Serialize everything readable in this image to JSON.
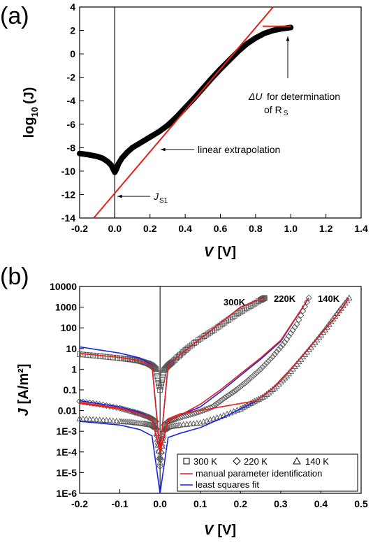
{
  "chart_data": [
    {
      "panel": "(a)",
      "type": "scatter",
      "xlabel_main": "V",
      "xlabel_unit": "[V]",
      "ylabel_main": "log",
      "ylabel_sub": "10",
      "ylabel_rest": "(J)",
      "xlim": [
        -0.2,
        1.4
      ],
      "ylim": [
        -14,
        4
      ],
      "xticks": [
        "-0.2",
        "0.0",
        "0.2",
        "0.4",
        "0.6",
        "0.8",
        "1.0",
        "1.2",
        "1.4"
      ],
      "yticks": [
        "-14",
        "-12",
        "-10",
        "-8",
        "-6",
        "-4",
        "-2",
        "0",
        "2",
        "4"
      ],
      "xtick_values": [
        -0.2,
        0,
        0.2,
        0.4,
        0.6,
        0.8,
        1.0,
        1.2,
        1.4
      ],
      "ytick_values": [
        -14,
        -12,
        -10,
        -8,
        -6,
        -4,
        -2,
        0,
        2,
        4
      ],
      "measured": {
        "x": [
          -0.2,
          -0.15,
          -0.1,
          -0.07,
          -0.04,
          -0.02,
          -0.01,
          0.0,
          0.01,
          0.02,
          0.04,
          0.07,
          0.1,
          0.15,
          0.2,
          0.25,
          0.3,
          0.35,
          0.4,
          0.45,
          0.5,
          0.55,
          0.6,
          0.65,
          0.7,
          0.75,
          0.8,
          0.85,
          0.9,
          0.95,
          1.0
        ],
        "y": [
          -8.5,
          -8.6,
          -8.75,
          -8.9,
          -9.2,
          -9.5,
          -9.8,
          -10.1,
          -9.8,
          -9.4,
          -8.9,
          -8.4,
          -8.0,
          -7.55,
          -7.1,
          -6.65,
          -6.1,
          -5.4,
          -4.6,
          -3.8,
          -2.95,
          -2.1,
          -1.3,
          -0.55,
          0.2,
          0.85,
          1.35,
          1.75,
          2.0,
          2.15,
          2.25
        ]
      },
      "extrapolation": {
        "x": [
          -0.12,
          0.9
        ],
        "y": [
          -14,
          4
        ]
      },
      "saturation_line": {
        "x": [
          0.84,
          1.0
        ],
        "y": [
          2.35,
          2.35
        ]
      },
      "annotations": {
        "delta_u_sym": "ΔU",
        "delta_u_text": "for determination",
        "delta_u_text2": "of R",
        "delta_u_sub": "S",
        "linear": "linear extrapolation",
        "js1": "J",
        "js1_sub": "S1"
      }
    },
    {
      "panel": "(b)",
      "type": "line",
      "xlabel_main": "V",
      "xlabel_unit": "[V]",
      "ylabel_main": "J",
      "ylabel_unit": "[A/m²]",
      "yscale": "log",
      "xlim": [
        -0.2,
        0.5
      ],
      "ylim": [
        1e-06,
        10000
      ],
      "xticks": [
        "-0.2",
        "-0.1",
        "0.0",
        "0.1",
        "0.2",
        "0.3",
        "0.4",
        "0.5"
      ],
      "xtick_values": [
        -0.2,
        -0.1,
        0,
        0.1,
        0.2,
        0.3,
        0.4,
        0.5
      ],
      "yticks": [
        "1E-6",
        "1E-5",
        "1E-4",
        "1E-3",
        "0.01",
        "0.1",
        "1",
        "10",
        "100",
        "1000",
        "10000"
      ],
      "ytick_exponents": [
        -6,
        -5,
        -4,
        -3,
        -2,
        -1,
        0,
        1,
        2,
        3,
        4
      ],
      "curve_labels": [
        "300K",
        "220K",
        "140K"
      ],
      "legend": {
        "s300": "300 K",
        "s220": "220 K",
        "s140": "140 K",
        "manual": "manual parameter identification",
        "lsq": "least squares fit"
      },
      "series": [
        {
          "name": "300 K",
          "x": [
            -0.2,
            -0.15,
            -0.1,
            -0.07,
            -0.05,
            -0.03,
            -0.02,
            -0.01,
            0.0,
            0.01,
            0.02,
            0.03,
            0.05,
            0.07,
            0.1,
            0.13,
            0.16,
            0.19,
            0.22,
            0.25,
            0.26
          ],
          "y": [
            5.3,
            4.3,
            3.4,
            2.9,
            2.5,
            1.9,
            1.5,
            1.0,
            0.1,
            0.9,
            1.5,
            2.2,
            5.0,
            11,
            30,
            70,
            180,
            450,
            1000,
            2200,
            2800
          ]
        },
        {
          "name": "220 K",
          "x": [
            -0.2,
            -0.15,
            -0.1,
            -0.07,
            -0.05,
            -0.03,
            -0.02,
            -0.01,
            0.0,
            0.01,
            0.02,
            0.04,
            0.07,
            0.1,
            0.13,
            0.16,
            0.19,
            0.22,
            0.25,
            0.28,
            0.31,
            0.34,
            0.37
          ],
          "y": [
            0.028,
            0.02,
            0.013,
            0.009,
            0.007,
            0.005,
            0.004,
            0.003,
            2e-05,
            0.002,
            0.003,
            0.004,
            0.006,
            0.009,
            0.015,
            0.04,
            0.1,
            0.3,
            1.0,
            4,
            20,
            150,
            2800
          ]
        },
        {
          "name": "140 K",
          "x": [
            -0.2,
            -0.15,
            -0.1,
            -0.07,
            -0.04,
            -0.02,
            -0.01,
            0.0,
            0.01,
            0.02,
            0.05,
            0.1,
            0.15,
            0.2,
            0.23,
            0.26,
            0.29,
            0.32,
            0.35,
            0.38,
            0.41,
            0.44,
            0.47
          ],
          "y": [
            0.004,
            0.0035,
            0.003,
            0.0027,
            0.0023,
            0.002,
            0.0015,
            3e-05,
            0.0012,
            0.0016,
            0.002,
            0.0025,
            0.005,
            0.012,
            0.025,
            0.05,
            0.15,
            0.6,
            3,
            15,
            80,
            500,
            2800
          ]
        }
      ],
      "manual_fit": [
        {
          "x": [
            -0.2,
            -0.1,
            -0.05,
            -0.02,
            0.0,
            0.02,
            0.05,
            0.1,
            0.15,
            0.2,
            0.25,
            0.26
          ],
          "y": [
            5.8,
            3.7,
            2.6,
            1.5,
            0.0001,
            1.5,
            5,
            30,
            170,
            1000,
            2500,
            2800
          ]
        },
        {
          "x": [
            -0.2,
            -0.1,
            -0.05,
            -0.02,
            0.0,
            0.02,
            0.05,
            0.1,
            0.15,
            0.2,
            0.25,
            0.3,
            0.37
          ],
          "y": [
            0.025,
            0.013,
            0.007,
            0.004,
            0.0001,
            0.003,
            0.006,
            0.02,
            0.1,
            0.6,
            3.5,
            25,
            2800
          ]
        },
        {
          "x": [
            -0.2,
            -0.1,
            -0.05,
            -0.02,
            0.0,
            0.02,
            0.05,
            0.1,
            0.15,
            0.2,
            0.24,
            0.28,
            0.32,
            0.36,
            0.4,
            0.44,
            0.47
          ],
          "y": [
            0.022,
            0.012,
            0.007,
            0.004,
            0.0001,
            0.004,
            0.007,
            0.01,
            0.015,
            0.022,
            0.03,
            0.12,
            0.8,
            6,
            50,
            400,
            2800
          ]
        }
      ],
      "lsq_fit": [
        {
          "x": [
            -0.2,
            -0.1,
            -0.05,
            -0.02,
            0.0,
            0.02,
            0.05,
            0.1,
            0.15,
            0.2,
            0.25,
            0.26
          ],
          "y": [
            12,
            6,
            3.5,
            1.6,
            0.0001,
            1.6,
            5,
            30,
            170,
            1000,
            2500,
            2800
          ]
        },
        {
          "x": [
            -0.2,
            -0.1,
            -0.05,
            -0.02,
            0.0,
            0.02,
            0.05,
            0.1,
            0.15,
            0.2,
            0.25,
            0.3,
            0.37
          ],
          "y": [
            0.03,
            0.015,
            0.008,
            0.004,
            0.0001,
            0.003,
            0.006,
            0.015,
            0.08,
            0.5,
            3,
            22,
            2800
          ]
        },
        {
          "x": [
            -0.2,
            -0.1,
            -0.05,
            -0.02,
            0.0,
            0.02,
            0.05,
            0.1,
            0.15,
            0.2,
            0.24,
            0.28,
            0.32,
            0.36,
            0.4,
            0.44,
            0.47
          ],
          "y": [
            0.003,
            0.002,
            0.0012,
            0.0006,
            1e-06,
            0.0005,
            0.0008,
            0.0015,
            0.004,
            0.012,
            0.03,
            0.12,
            0.8,
            6,
            50,
            400,
            2800
          ]
        }
      ]
    }
  ],
  "colors": {
    "fit_red": "#e8201a",
    "fit_blue": "#1a22e8",
    "data_black": "#000000",
    "marker_gray": "#555555"
  }
}
